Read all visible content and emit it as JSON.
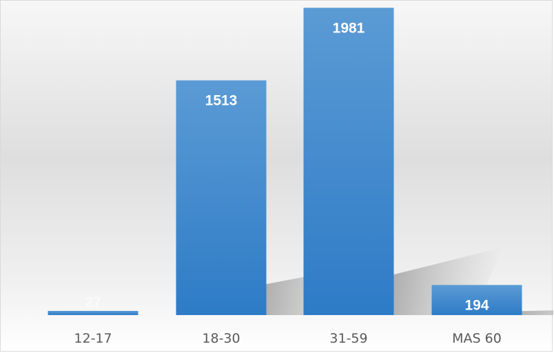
{
  "chart_data": {
    "type": "bar",
    "categories": [
      "12-17",
      "18-30",
      "31-59",
      "MAS 60"
    ],
    "values": [
      27,
      1513,
      1981,
      194
    ],
    "title": "",
    "xlabel": "",
    "ylabel": "",
    "ylim": [
      0,
      2000
    ],
    "grid": false,
    "legend": "none",
    "data_labels": true,
    "colors": {
      "bar_top": "#5b9bd5",
      "bar_bottom": "#2e7bc6",
      "label_text": "#ffffff",
      "tick_text": "#595959"
    }
  }
}
